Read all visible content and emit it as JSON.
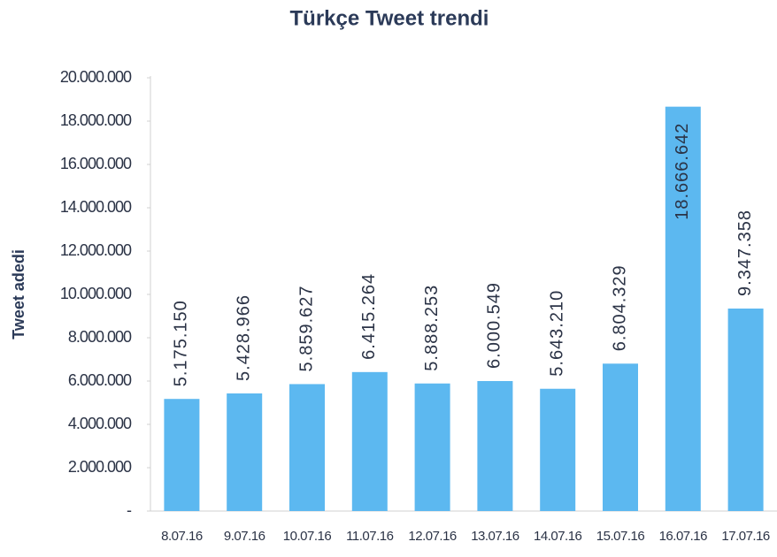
{
  "chart_data": {
    "type": "bar",
    "title": "Türkçe Tweet trendi",
    "y_label": "Tweet adedi",
    "categories": [
      "8.07.16",
      "9.07.16",
      "10.07.16",
      "11.07.16",
      "12.07.16",
      "13.07.16",
      "14.07.16",
      "15.07.16",
      "16.07.16",
      "17.07.16"
    ],
    "values": [
      5175150,
      5428966,
      5859627,
      6415264,
      5888253,
      6000549,
      5643210,
      6804329,
      18666642,
      9347358
    ],
    "value_labels": [
      "5.175.150",
      "5.428.966",
      "5.859.627",
      "6.415.264",
      "5.888.253",
      "6.000.549",
      "5.643.210",
      "6.804.329",
      "18.666.642",
      "9.347.358"
    ],
    "color": "#5cb8f0",
    "ylim": [
      0,
      20000000
    ],
    "yticks": [
      {
        "value": 0,
        "label": "-"
      },
      {
        "value": 2000000,
        "label": "2.000.000"
      },
      {
        "value": 4000000,
        "label": "4.000.000"
      },
      {
        "value": 6000000,
        "label": "6.000.000"
      },
      {
        "value": 8000000,
        "label": "8.000.000"
      },
      {
        "value": 10000000,
        "label": "10.000.000"
      },
      {
        "value": 12000000,
        "label": "12.000.000"
      },
      {
        "value": 14000000,
        "label": "14.000.000"
      },
      {
        "value": 16000000,
        "label": "16.000.000"
      },
      {
        "value": 18000000,
        "label": "18.000.000"
      },
      {
        "value": 20000000,
        "label": "20.000.000"
      }
    ],
    "grid": false
  }
}
